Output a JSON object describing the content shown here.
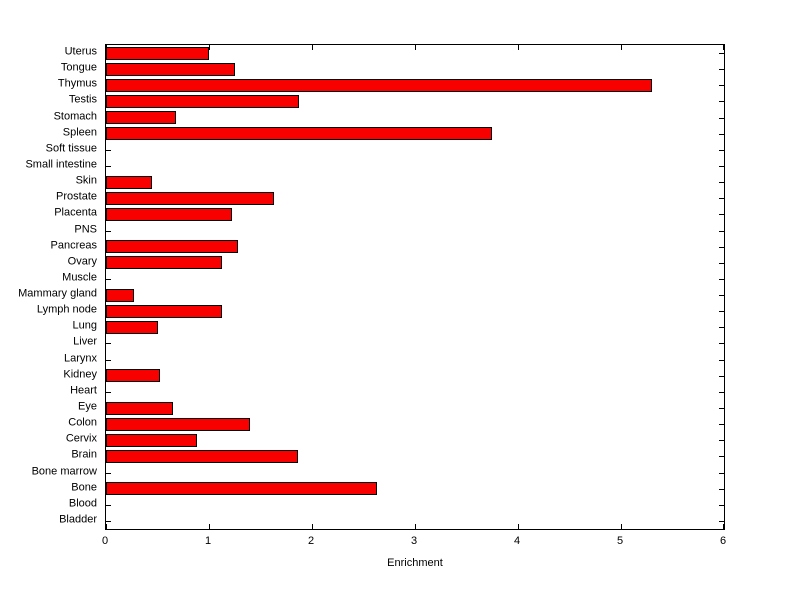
{
  "figure": {
    "background": "#ffffff"
  },
  "chart_data": {
    "type": "bar",
    "orientation": "horizontal",
    "title": "",
    "xlabel": "Enrichment",
    "ylabel": "",
    "xlim": [
      0,
      6
    ],
    "xticks": [
      0,
      1,
      2,
      3,
      4,
      5,
      6
    ],
    "grid": false,
    "legend": null,
    "bar_color": "#f80000",
    "bar_edge_color": "#000000",
    "categories": [
      "Uterus",
      "Tongue",
      "Thymus",
      "Testis",
      "Stomach",
      "Spleen",
      "Soft tissue",
      "Small intestine",
      "Skin",
      "Prostate",
      "Placenta",
      "PNS",
      "Pancreas",
      "Ovary",
      "Muscle",
      "Mammary gland",
      "Lymph node",
      "Lung",
      "Liver",
      "Larynx",
      "Kidney",
      "Heart",
      "Eye",
      "Colon",
      "Cervix",
      "Brain",
      "Bone marrow",
      "Bone",
      "Blood",
      "Bladder"
    ],
    "values": [
      1.0,
      1.25,
      5.3,
      1.87,
      0.68,
      3.75,
      0,
      0,
      0.45,
      1.63,
      1.22,
      0,
      1.28,
      1.13,
      0,
      0.27,
      1.13,
      0.5,
      0,
      0,
      0.52,
      0,
      0.65,
      1.4,
      0.88,
      1.86,
      0,
      2.63,
      0,
      0
    ]
  }
}
